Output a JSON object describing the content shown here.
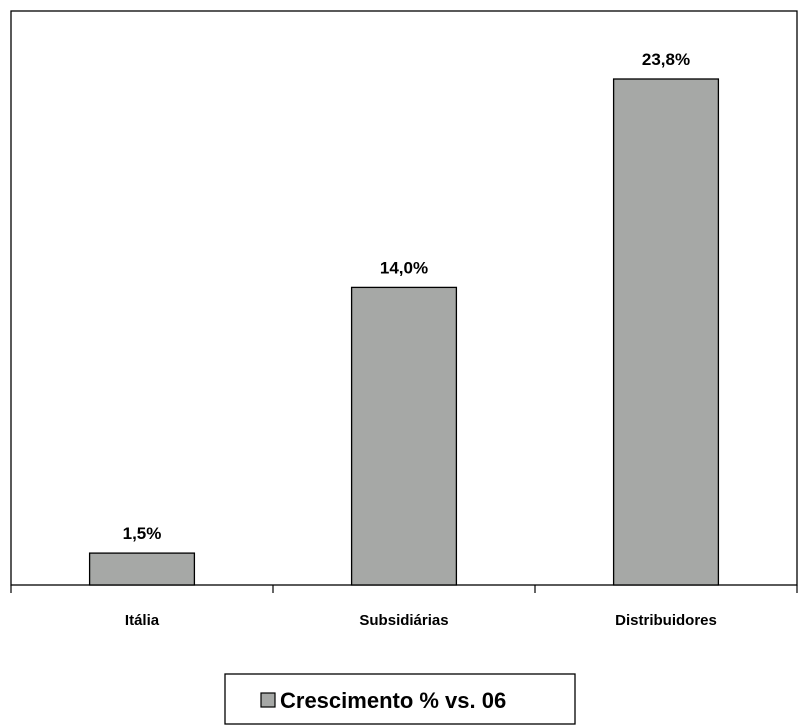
{
  "chart_data": {
    "type": "bar",
    "categories": [
      "Itália",
      "Subsidiárias",
      "Distribuidores"
    ],
    "values": [
      1.5,
      14.0,
      23.8
    ],
    "data_labels": [
      "1,5%",
      "14,0%",
      "23,8%"
    ],
    "series": [
      {
        "name": "Crescimento % vs. 06",
        "values": [
          1.5,
          14.0,
          23.8
        ]
      }
    ],
    "title": "",
    "xlabel": "",
    "ylabel": "",
    "ylim": [
      0,
      27
    ],
    "grid": false,
    "legend": "bottom",
    "bar_color": "#a6a8a6",
    "bar_edge_color": "#000000"
  }
}
